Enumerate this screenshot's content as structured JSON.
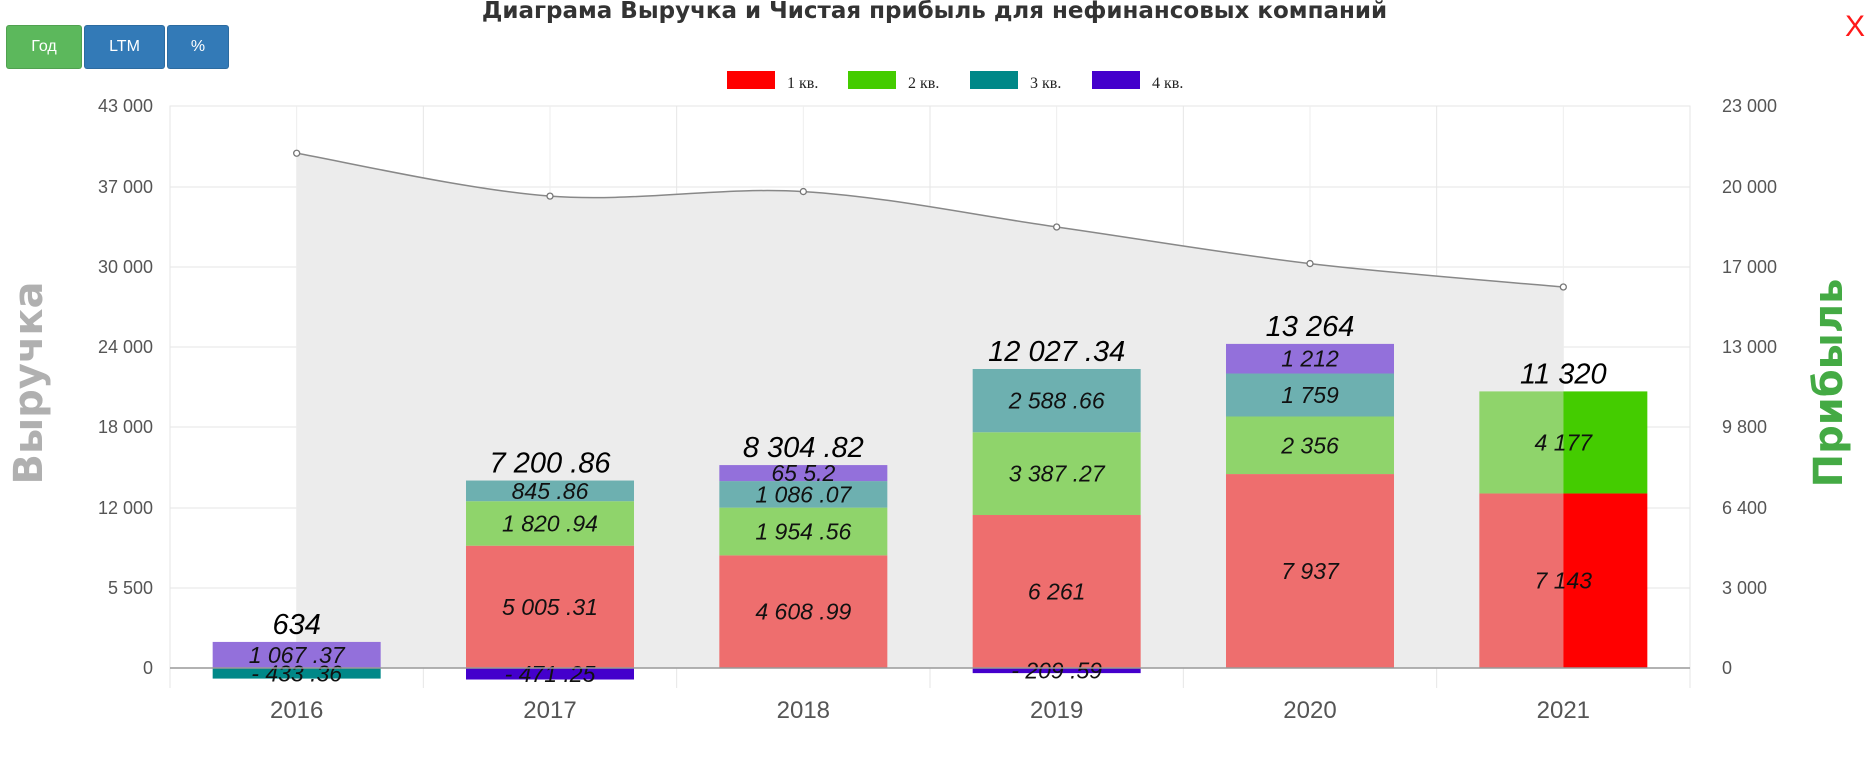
{
  "toolbar": {
    "year_label": "Год",
    "ltm_label": "LTM",
    "percent_label": "%"
  },
  "title": "Диаграма Выручка и Чистая прибыль для нефинансовых компаний",
  "close_label": "X",
  "colors": {
    "q1": "#ff0000",
    "q2": "#44cc00",
    "q3": "#008888",
    "q4": "#4400cc",
    "q1_light": "#ee6e6e",
    "q2_light": "#8fd46b",
    "q3_light": "#6db0b0",
    "q4_light": "#9370db",
    "left_axis_title": "#b0b0b0",
    "right_axis_title": "#44aa44"
  },
  "chart_data": {
    "type": "bar",
    "title": "Диаграма Выручка и Чистая прибыль для нефинансовых компаний",
    "legend": [
      "1 кв.",
      "2 кв.",
      "3 кв.",
      "4 кв."
    ],
    "legend_position": "top-center",
    "left_axis_title": "Выручка",
    "right_axis_title": "Прибыль",
    "left_ticks": [
      "0",
      "5 500",
      "12 000",
      "18 000",
      "24 000",
      "30 000",
      "37 000",
      "43 000"
    ],
    "right_ticks": [
      "0",
      "3 000",
      "6 400",
      "9 800",
      "13 000",
      "17 000",
      "20 000",
      "23 000"
    ],
    "ylim_left": [
      0,
      43000
    ],
    "ylim_right": [
      0,
      23000
    ],
    "grid": true,
    "categories": [
      "2016",
      "2017",
      "2018",
      "2019",
      "2020",
      "2021"
    ],
    "stacks": [
      {
        "year": "2016",
        "total_label": "634",
        "segments": [
          {
            "q": "q3",
            "value": -433.36,
            "label": "- 433 .36"
          },
          {
            "q": "q4",
            "value": 1067.37,
            "label": "1 067 .37"
          }
        ]
      },
      {
        "year": "2017",
        "total_label": "7 200 .86",
        "segments": [
          {
            "q": "q1",
            "value": 5005.31,
            "label": "5 005 .31"
          },
          {
            "q": "q2",
            "value": 1820.94,
            "label": "1 820 .94"
          },
          {
            "q": "q3",
            "value": 845.86,
            "label": "845 .86"
          },
          {
            "q": "q4",
            "value": -471.25,
            "label": "- 471 .25"
          }
        ]
      },
      {
        "year": "2018",
        "total_label": "8 304 .82",
        "segments": [
          {
            "q": "q1",
            "value": 4608.99,
            "label": "4 608 .99"
          },
          {
            "q": "q2",
            "value": 1954.56,
            "label": "1 954 .56"
          },
          {
            "q": "q3",
            "value": 1086.07,
            "label": "1 086 .07"
          },
          {
            "q": "q4",
            "value": 655.2,
            "label": "65 5.2"
          }
        ]
      },
      {
        "year": "2019",
        "total_label": "12 027 .34",
        "segments": [
          {
            "q": "q1",
            "value": 6261,
            "label": "6 261"
          },
          {
            "q": "q2",
            "value": 3387.27,
            "label": "3 387 .27"
          },
          {
            "q": "q3",
            "value": 2588.66,
            "label": "2 588 .66"
          },
          {
            "q": "q4",
            "value": -209.59,
            "label": "- 209 .59"
          }
        ]
      },
      {
        "year": "2020",
        "total_label": "13 264",
        "segments": [
          {
            "q": "q1",
            "value": 7937,
            "label": "7 937"
          },
          {
            "q": "q2",
            "value": 2356,
            "label": "2 356"
          },
          {
            "q": "q3",
            "value": 1759,
            "label": "1 759"
          },
          {
            "q": "q4",
            "value": 1212,
            "label": "1 212"
          }
        ]
      },
      {
        "year": "2021",
        "total_label": "11 320",
        "segments": [
          {
            "q": "q1",
            "value": 7143,
            "label": "7 143"
          },
          {
            "q": "q2",
            "value": 4177,
            "label": "4 177"
          }
        ]
      }
    ],
    "revenue_series": {
      "values": [
        39500,
        36200,
        36600,
        33500,
        30300,
        28500
      ]
    }
  }
}
